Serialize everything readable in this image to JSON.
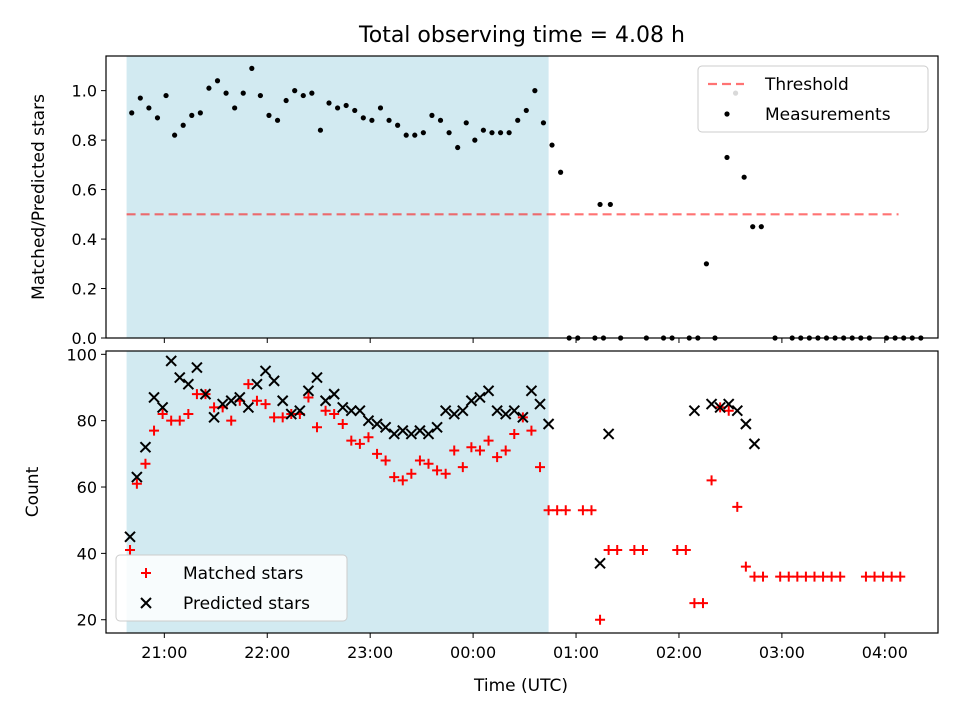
{
  "chart_data": [
    {
      "type": "scatter",
      "title": "Total observing time = 4.08 h",
      "xlabel": "",
      "ylabel": "Matched/Predicted stars",
      "ylim": [
        0,
        1.14
      ],
      "yticks": [
        "0.0",
        "0.2",
        "0.4",
        "0.6",
        "0.8",
        "1.0"
      ],
      "shaded_interval": [
        "20:38",
        "00:44"
      ],
      "shade_color": "#add8e6",
      "legend": {
        "placement": "upper right",
        "entries": [
          "Threshold",
          "Measurements"
        ]
      },
      "threshold": {
        "name": "Threshold",
        "y": 0.5,
        "x_range": [
          "20:38",
          "04:08"
        ],
        "color": "#ff0000",
        "style": "dashed"
      },
      "series": [
        {
          "name": "Measurements",
          "marker": "dot",
          "color": "#000000",
          "points": [
            [
              "20:41",
              0.91
            ],
            [
              "20:46",
              0.97
            ],
            [
              "20:51",
              0.93
            ],
            [
              "20:56",
              0.89
            ],
            [
              "21:01",
              0.98
            ],
            [
              "21:06",
              0.82
            ],
            [
              "21:11",
              0.86
            ],
            [
              "21:16",
              0.9
            ],
            [
              "21:21",
              0.91
            ],
            [
              "21:26",
              1.01
            ],
            [
              "21:31",
              1.04
            ],
            [
              "21:36",
              0.99
            ],
            [
              "21:41",
              0.93
            ],
            [
              "21:46",
              0.99
            ],
            [
              "21:51",
              1.09
            ],
            [
              "21:56",
              0.98
            ],
            [
              "22:01",
              0.9
            ],
            [
              "22:06",
              0.88
            ],
            [
              "22:11",
              0.96
            ],
            [
              "22:16",
              1.0
            ],
            [
              "22:21",
              0.98
            ],
            [
              "22:26",
              0.99
            ],
            [
              "22:31",
              0.84
            ],
            [
              "22:36",
              0.95
            ],
            [
              "22:41",
              0.93
            ],
            [
              "22:46",
              0.94
            ],
            [
              "22:51",
              0.92
            ],
            [
              "22:56",
              0.89
            ],
            [
              "23:01",
              0.88
            ],
            [
              "23:06",
              0.93
            ],
            [
              "23:11",
              0.88
            ],
            [
              "23:16",
              0.86
            ],
            [
              "23:21",
              0.82
            ],
            [
              "23:26",
              0.82
            ],
            [
              "23:31",
              0.83
            ],
            [
              "23:36",
              0.9
            ],
            [
              "23:41",
              0.88
            ],
            [
              "23:46",
              0.83
            ],
            [
              "23:51",
              0.77
            ],
            [
              "23:56",
              0.87
            ],
            [
              "00:01",
              0.8
            ],
            [
              "00:06",
              0.84
            ],
            [
              "00:11",
              0.83
            ],
            [
              "00:16",
              0.83
            ],
            [
              "00:21",
              0.83
            ],
            [
              "00:26",
              0.88
            ],
            [
              "00:31",
              0.92
            ],
            [
              "00:36",
              1.0
            ],
            [
              "00:41",
              0.87
            ],
            [
              "00:46",
              0.78
            ],
            [
              "00:51",
              0.67
            ],
            [
              "00:56",
              0
            ],
            [
              "01:01",
              0
            ],
            [
              "01:11",
              0
            ],
            [
              "01:16",
              0
            ],
            [
              "01:26",
              0
            ],
            [
              "01:14",
              0.54
            ],
            [
              "01:20",
              0.54
            ],
            [
              "01:41",
              0
            ],
            [
              "01:51",
              0
            ],
            [
              "01:56",
              0
            ],
            [
              "02:06",
              0
            ],
            [
              "02:11",
              0
            ],
            [
              "02:16",
              0.3
            ],
            [
              "02:21",
              0
            ],
            [
              "02:28",
              0.73
            ],
            [
              "02:33",
              0.99
            ],
            [
              "02:38",
              0.65
            ],
            [
              "02:43",
              0.45
            ],
            [
              "02:48",
              0.45
            ],
            [
              "02:56",
              0
            ],
            [
              "03:06",
              0
            ],
            [
              "03:11",
              0
            ],
            [
              "03:16",
              0
            ],
            [
              "03:21",
              0
            ],
            [
              "03:26",
              0
            ],
            [
              "03:31",
              0
            ],
            [
              "03:36",
              0
            ],
            [
              "03:41",
              0
            ],
            [
              "03:46",
              0
            ],
            [
              "03:51",
              0
            ],
            [
              "04:01",
              0
            ],
            [
              "04:06",
              0
            ],
            [
              "04:11",
              0
            ],
            [
              "04:16",
              0
            ],
            [
              "04:21",
              0
            ]
          ]
        }
      ]
    },
    {
      "type": "scatter",
      "title": "",
      "xlabel": "Time (UTC)",
      "ylabel": "Count",
      "ylim": [
        16,
        101
      ],
      "yticks": [
        "20",
        "40",
        "60",
        "80",
        "100"
      ],
      "xticks": [
        "21:00",
        "22:00",
        "23:00",
        "00:00",
        "01:00",
        "02:00",
        "03:00",
        "04:00"
      ],
      "shaded_interval": [
        "20:38",
        "00:44"
      ],
      "shade_color": "#add8e6",
      "legend": {
        "placement": "lower left",
        "entries": [
          "Matched stars",
          "Predicted stars"
        ]
      },
      "series": [
        {
          "name": "Matched stars",
          "marker": "plus",
          "color": "#ff0000",
          "points": [
            [
              "20:40",
              41
            ],
            [
              "20:44",
              61
            ],
            [
              "20:49",
              67
            ],
            [
              "20:54",
              77
            ],
            [
              "20:59",
              82
            ],
            [
              "21:04",
              80
            ],
            [
              "21:09",
              80
            ],
            [
              "21:14",
              82
            ],
            [
              "21:19",
              88
            ],
            [
              "21:24",
              88
            ],
            [
              "21:29",
              84
            ],
            [
              "21:34",
              84
            ],
            [
              "21:39",
              80
            ],
            [
              "21:44",
              86
            ],
            [
              "21:49",
              91
            ],
            [
              "21:54",
              86
            ],
            [
              "21:59",
              85
            ],
            [
              "22:04",
              81
            ],
            [
              "22:09",
              81
            ],
            [
              "22:14",
              82
            ],
            [
              "22:19",
              82
            ],
            [
              "22:24",
              87
            ],
            [
              "22:29",
              78
            ],
            [
              "22:34",
              83
            ],
            [
              "22:39",
              82
            ],
            [
              "22:44",
              79
            ],
            [
              "22:49",
              74
            ],
            [
              "22:54",
              73
            ],
            [
              "22:59",
              75
            ],
            [
              "23:04",
              70
            ],
            [
              "23:09",
              68
            ],
            [
              "23:14",
              63
            ],
            [
              "23:19",
              62
            ],
            [
              "23:24",
              64
            ],
            [
              "23:29",
              68
            ],
            [
              "23:34",
              67
            ],
            [
              "23:39",
              65
            ],
            [
              "23:44",
              64
            ],
            [
              "23:49",
              71
            ],
            [
              "23:54",
              66
            ],
            [
              "23:59",
              72
            ],
            [
              "00:04",
              71
            ],
            [
              "00:09",
              74
            ],
            [
              "00:14",
              69
            ],
            [
              "00:19",
              71
            ],
            [
              "00:24",
              76
            ],
            [
              "00:29",
              81
            ],
            [
              "00:34",
              77
            ],
            [
              "00:39",
              66
            ],
            [
              "00:44",
              53
            ],
            [
              "00:49",
              53
            ],
            [
              "00:54",
              53
            ],
            [
              "01:04",
              53
            ],
            [
              "01:09",
              53
            ],
            [
              "01:14",
              20
            ],
            [
              "01:19",
              41
            ],
            [
              "01:24",
              41
            ],
            [
              "01:34",
              41
            ],
            [
              "01:39",
              41
            ],
            [
              "01:59",
              41
            ],
            [
              "02:04",
              41
            ],
            [
              "02:09",
              25
            ],
            [
              "02:14",
              25
            ],
            [
              "02:19",
              62
            ],
            [
              "02:24",
              84
            ],
            [
              "02:29",
              83
            ],
            [
              "02:34",
              54
            ],
            [
              "02:39",
              36
            ],
            [
              "02:44",
              33
            ],
            [
              "02:49",
              33
            ],
            [
              "02:59",
              33
            ],
            [
              "03:04",
              33
            ],
            [
              "03:09",
              33
            ],
            [
              "03:14",
              33
            ],
            [
              "03:19",
              33
            ],
            [
              "03:24",
              33
            ],
            [
              "03:29",
              33
            ],
            [
              "03:34",
              33
            ],
            [
              "03:49",
              33
            ],
            [
              "03:54",
              33
            ],
            [
              "03:59",
              33
            ],
            [
              "04:04",
              33
            ],
            [
              "04:09",
              33
            ]
          ]
        },
        {
          "name": "Predicted stars",
          "marker": "x",
          "color": "#000000",
          "points": [
            [
              "20:40",
              45
            ],
            [
              "20:44",
              63
            ],
            [
              "20:49",
              72
            ],
            [
              "20:54",
              87
            ],
            [
              "20:59",
              84
            ],
            [
              "21:04",
              98
            ],
            [
              "21:09",
              93
            ],
            [
              "21:14",
              91
            ],
            [
              "21:19",
              96
            ],
            [
              "21:24",
              88
            ],
            [
              "21:29",
              81
            ],
            [
              "21:34",
              85
            ],
            [
              "21:39",
              86
            ],
            [
              "21:44",
              87
            ],
            [
              "21:49",
              84
            ],
            [
              "21:54",
              91
            ],
            [
              "21:59",
              95
            ],
            [
              "22:04",
              92
            ],
            [
              "22:09",
              86
            ],
            [
              "22:14",
              82
            ],
            [
              "22:19",
              83
            ],
            [
              "22:24",
              89
            ],
            [
              "22:29",
              93
            ],
            [
              "22:34",
              86
            ],
            [
              "22:39",
              88
            ],
            [
              "22:44",
              84
            ],
            [
              "22:49",
              83
            ],
            [
              "22:54",
              83
            ],
            [
              "22:59",
              80
            ],
            [
              "23:04",
              79
            ],
            [
              "23:09",
              78
            ],
            [
              "23:14",
              76
            ],
            [
              "23:19",
              77
            ],
            [
              "23:24",
              76
            ],
            [
              "23:29",
              77
            ],
            [
              "23:34",
              76
            ],
            [
              "23:39",
              78
            ],
            [
              "23:44",
              83
            ],
            [
              "23:49",
              82
            ],
            [
              "23:54",
              83
            ],
            [
              "23:59",
              86
            ],
            [
              "00:04",
              87
            ],
            [
              "00:09",
              89
            ],
            [
              "00:14",
              83
            ],
            [
              "00:19",
              82
            ],
            [
              "00:24",
              83
            ],
            [
              "00:29",
              81
            ],
            [
              "00:34",
              89
            ],
            [
              "00:39",
              85
            ],
            [
              "00:44",
              79
            ],
            [
              "01:14",
              37
            ],
            [
              "01:19",
              76
            ],
            [
              "02:09",
              83
            ],
            [
              "02:19",
              85
            ],
            [
              "02:24",
              84
            ],
            [
              "02:29",
              85
            ],
            [
              "02:34",
              83
            ],
            [
              "02:39",
              79
            ],
            [
              "02:44",
              73
            ]
          ]
        }
      ]
    }
  ]
}
